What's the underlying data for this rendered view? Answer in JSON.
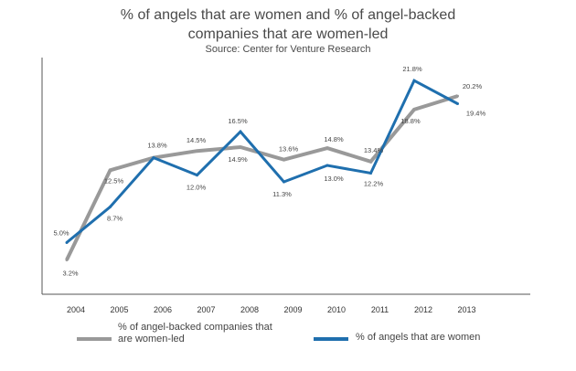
{
  "chart_data": {
    "type": "line",
    "title_line1": "% of angels that are women and % of angel-backed",
    "title_line2": "companies that are women-led",
    "subtitle": "Source: Center for Venture Research",
    "categories": [
      "2004",
      "2005",
      "2006",
      "2007",
      "2008",
      "2009",
      "2010",
      "2011",
      "2012",
      "2013"
    ],
    "ylim": [
      0,
      25
    ],
    "grid": false,
    "legend_position": "bottom",
    "series": [
      {
        "name": "% of angel-backed companies that are women-led",
        "legend_line1": "% of angel-backed companies that",
        "legend_line2": "are women-led",
        "color": "#999999",
        "values": [
          3.2,
          12.5,
          13.8,
          14.5,
          14.9,
          13.6,
          14.8,
          13.4,
          18.8,
          20.2
        ],
        "labels": [
          "3.2%",
          "12.5%",
          "13.8%",
          "14.5%",
          "14.9%",
          "13.6%",
          "14.8%",
          "13.4%",
          "18.8%",
          "20.2%"
        ]
      },
      {
        "name": "% of angels that are women",
        "color": "#1f6fae",
        "values": [
          5.0,
          8.7,
          13.8,
          12.0,
          16.5,
          11.3,
          13.0,
          12.2,
          21.8,
          19.4
        ],
        "labels": [
          "5.0%",
          "8.7%",
          "",
          "12.0%",
          "16.5%",
          "11.3%",
          "13.0%",
          "12.2%",
          "21.8%",
          "19.4%"
        ]
      }
    ]
  }
}
